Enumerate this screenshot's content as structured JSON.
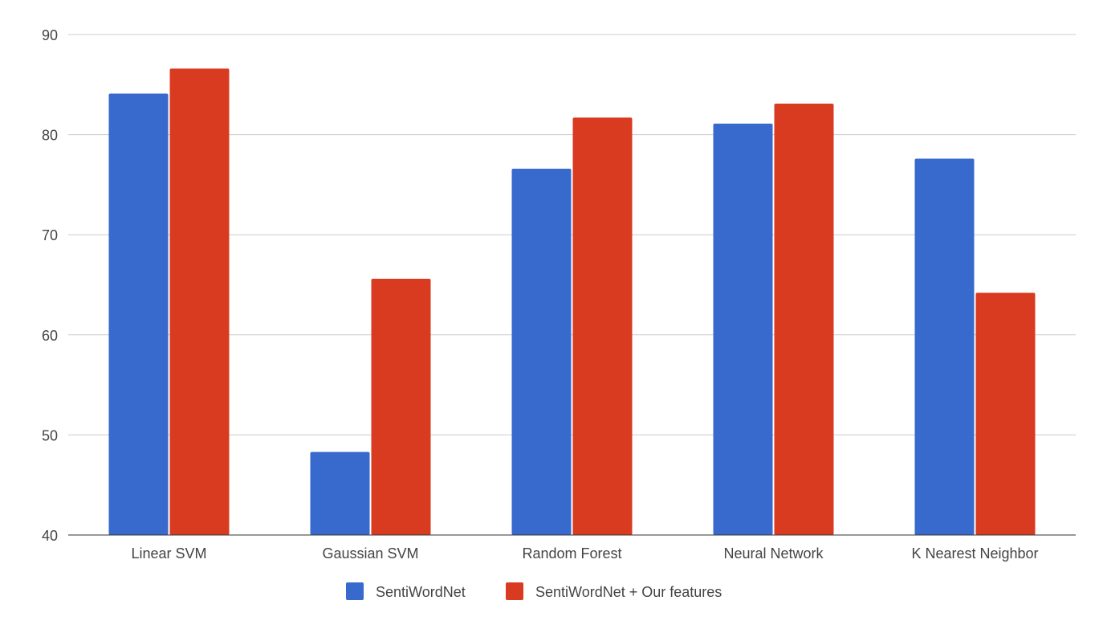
{
  "chart_data": {
    "type": "bar",
    "title": "",
    "xlabel": "",
    "ylabel": "",
    "categories": [
      "Linear SVM",
      "Gaussian SVM",
      "Random Forest",
      "Neural Network",
      "K Nearest Neighbor"
    ],
    "series": [
      {
        "name": "SentiWordNet",
        "values": [
          84.1,
          48.3,
          76.6,
          81.1,
          77.6
        ],
        "color": "#3869cc"
      },
      {
        "name": "SentiWordNet + Our features",
        "values": [
          86.6,
          65.6,
          81.7,
          83.1,
          64.2
        ],
        "color": "#d93b20"
      }
    ],
    "ylim": [
      40,
      90
    ],
    "yticks": [
      "40",
      "50",
      "60",
      "70",
      "80",
      "90"
    ],
    "grid": true,
    "legend_position": "bottom"
  }
}
